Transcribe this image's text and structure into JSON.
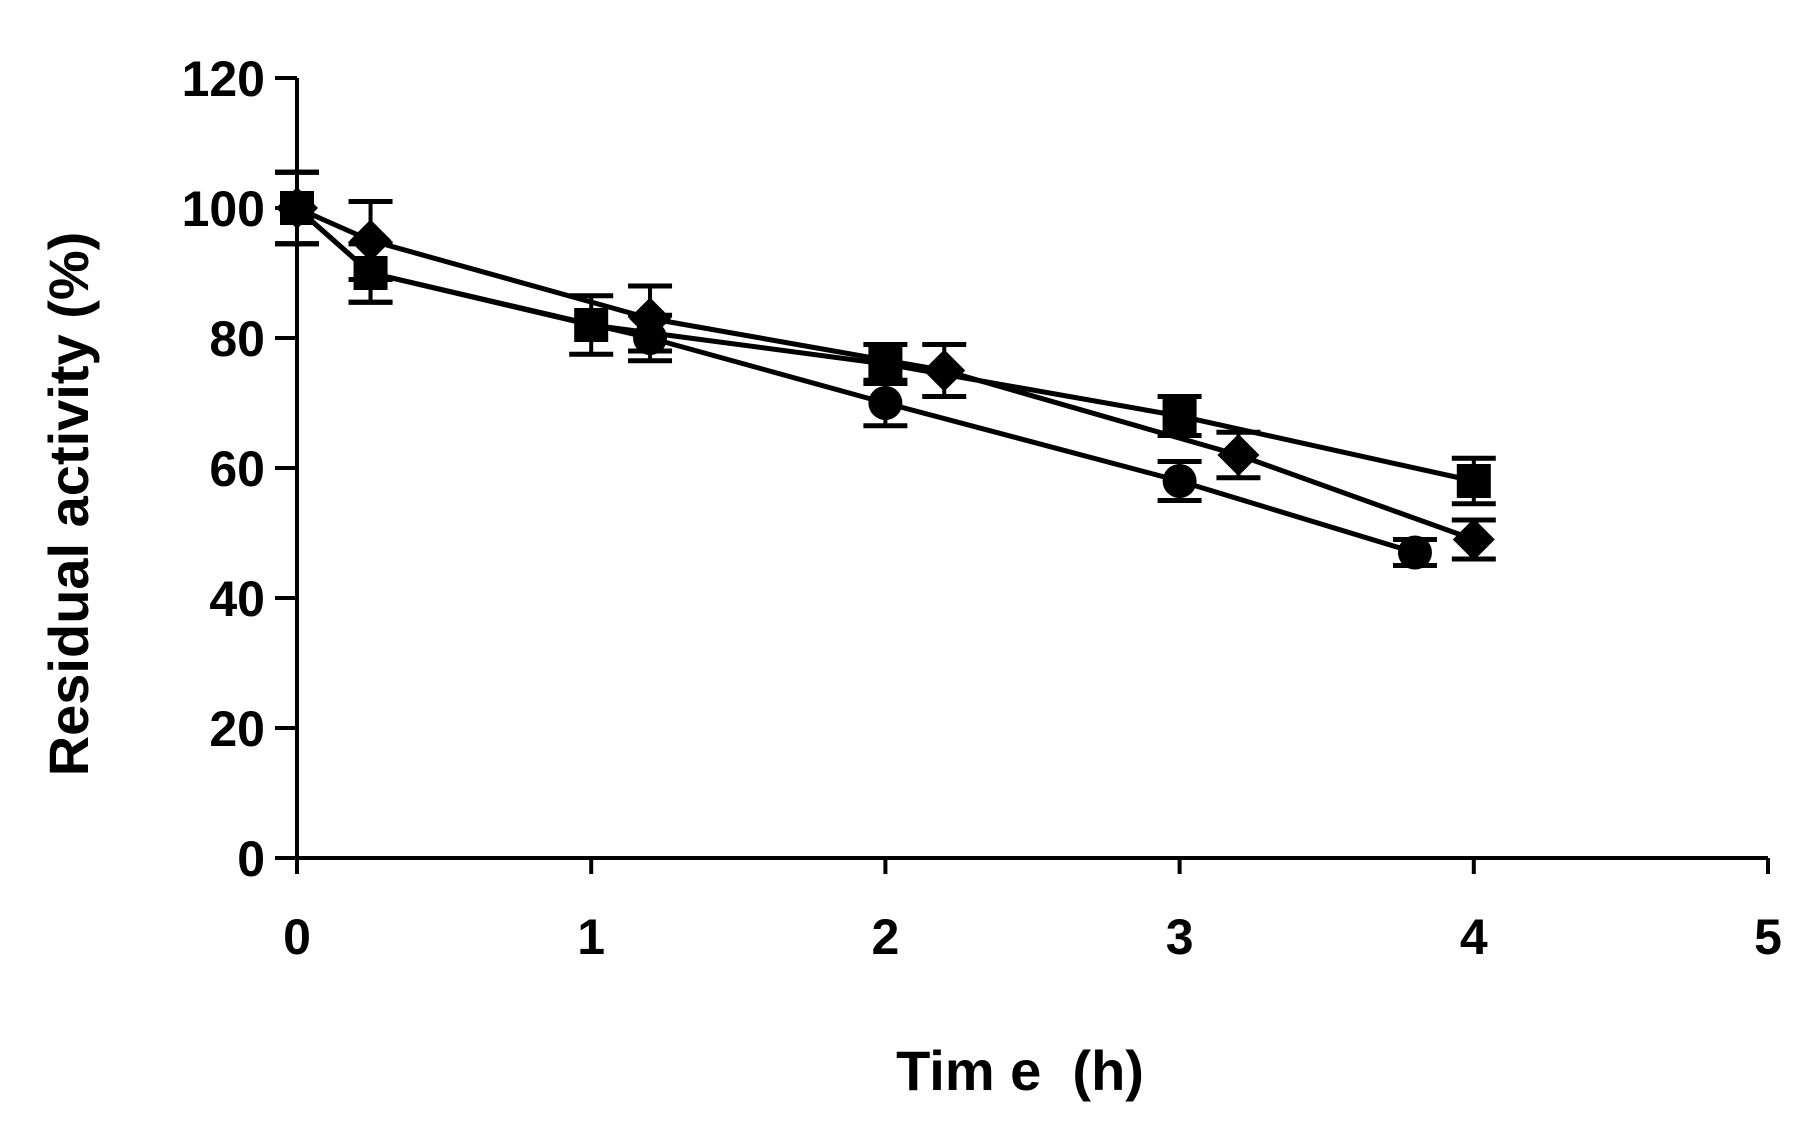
{
  "chart_data": {
    "type": "line",
    "title": "",
    "xlabel": "Tim e  (h)",
    "ylabel": "Residual activity (%)",
    "xlim": [
      0,
      5
    ],
    "ylim": [
      0,
      120
    ],
    "x_ticks": [
      "0",
      "1",
      "2",
      "3",
      "4",
      "5"
    ],
    "y_ticks": [
      "0",
      "20",
      "40",
      "60",
      "80",
      "100",
      "120"
    ],
    "grid": false,
    "legend": "none",
    "colors": {
      "line": "#000000",
      "marker": "#000000",
      "background": "#ffffff"
    },
    "series": [
      {
        "name": "square",
        "marker": "square",
        "x": [
          0,
          0.25,
          1,
          2,
          3,
          4
        ],
        "y": [
          100,
          90,
          82,
          76,
          68,
          58
        ],
        "err": [
          5.5,
          4.5,
          4.5,
          3,
          3,
          3.5
        ]
      },
      {
        "name": "diamond",
        "marker": "diamond",
        "x": [
          0,
          0.25,
          1.2,
          2.2,
          3.2,
          4
        ],
        "y": [
          100,
          95,
          83,
          75,
          62,
          49
        ],
        "err": [
          5.5,
          6,
          5,
          4,
          3.5,
          3
        ]
      },
      {
        "name": "circle",
        "marker": "circle",
        "x": [
          0,
          0.25,
          1.2,
          2,
          3,
          3.8
        ],
        "y": [
          100,
          90,
          80,
          70,
          58,
          47
        ],
        "err": [
          5.5,
          4.5,
          3.5,
          3.5,
          3,
          2
        ]
      }
    ]
  }
}
